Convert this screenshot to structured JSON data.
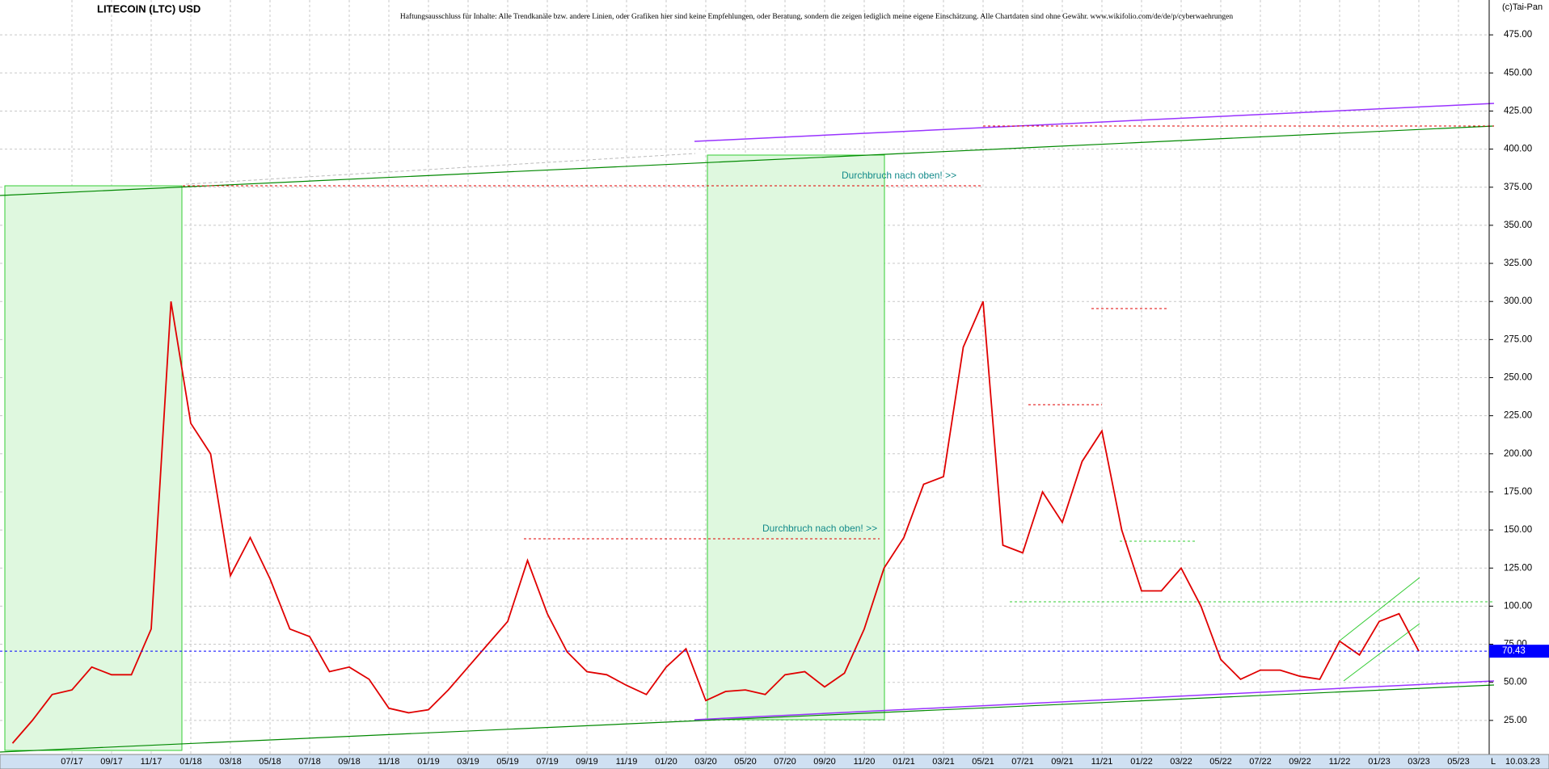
{
  "chart_data": {
    "type": "line",
    "title": "LITECOIN (LTC) USD",
    "subtitle": "Haftungsausschluss für Inhalte: Alle Trendkanäle bzw. andere Linien, oder Grafiken hier sind keine Empfehlungen, oder Beratung, sondern die zeigen lediglich meine eigene Einschätzung. Alle Chartdaten sind ohne Gewähr.  www.wikifolio.com/de/de/p/cyberwaehrungen",
    "copyright": "(c)Tai-Pan",
    "annotations": [
      "Durchbruch nach oben! >>",
      "Durchbruch nach oben! >>"
    ],
    "date_label": "10.03.23",
    "scale_label": "L",
    "x": [
      "04/17",
      "05/17",
      "06/17",
      "07/17",
      "08/17",
      "09/17",
      "10/17",
      "11/17",
      "12/17",
      "01/18",
      "02/18",
      "03/18",
      "04/18",
      "05/18",
      "06/18",
      "07/18",
      "08/18",
      "09/18",
      "10/18",
      "11/18",
      "12/18",
      "01/19",
      "02/19",
      "03/19",
      "04/19",
      "05/19",
      "06/19",
      "07/19",
      "08/19",
      "09/19",
      "10/19",
      "11/19",
      "12/19",
      "01/20",
      "02/20",
      "03/20",
      "04/20",
      "05/20",
      "06/20",
      "07/20",
      "08/20",
      "09/20",
      "10/20",
      "11/20",
      "12/20",
      "01/21",
      "02/21",
      "03/21",
      "04/21",
      "05/21",
      "06/21",
      "07/21",
      "08/21",
      "09/21",
      "10/21",
      "11/21",
      "12/21",
      "01/22",
      "02/22",
      "03/22",
      "04/22",
      "05/22",
      "06/22",
      "07/22",
      "08/22",
      "09/22",
      "10/22",
      "11/22",
      "12/22",
      "01/23",
      "02/23",
      "03/23"
    ],
    "series": [
      {
        "name": "LTC",
        "color": "#e00000",
        "values": [
          10,
          25,
          42,
          45,
          60,
          55,
          55,
          85,
          300,
          220,
          200,
          120,
          145,
          118,
          85,
          80,
          57,
          60,
          52,
          33,
          30,
          32,
          45,
          60,
          75,
          90,
          130,
          95,
          70,
          57,
          55,
          48,
          42,
          60,
          72,
          38,
          44,
          45,
          42,
          55,
          57,
          47,
          56,
          85,
          125,
          145,
          180,
          185,
          270,
          300,
          140,
          135,
          175,
          155,
          195,
          215,
          150,
          110,
          110,
          125,
          100,
          65,
          52,
          58,
          58,
          54,
          52,
          77,
          68,
          90,
          95,
          70.43
        ]
      }
    ],
    "xticks": [
      "07/17",
      "09/17",
      "11/17",
      "01/18",
      "03/18",
      "05/18",
      "07/18",
      "09/18",
      "11/18",
      "01/19",
      "03/19",
      "05/19",
      "07/19",
      "09/19",
      "11/19",
      "01/20",
      "03/20",
      "05/20",
      "07/20",
      "09/20",
      "11/20",
      "01/21",
      "03/21",
      "05/21",
      "07/21",
      "09/21",
      "11/21",
      "01/22",
      "03/22",
      "05/22",
      "07/22",
      "09/22",
      "11/22",
      "01/23",
      "03/23",
      "05/23"
    ],
    "ylim": [
      0,
      500
    ],
    "yticks": [
      {
        "value": 25,
        "label": "25.00"
      },
      {
        "value": 50,
        "label": "50.00"
      },
      {
        "value": 75,
        "label": "75.00"
      },
      {
        "value": 100,
        "label": "100.00"
      },
      {
        "value": 125,
        "label": "125.00"
      },
      {
        "value": 150,
        "label": "150.00"
      },
      {
        "value": 175,
        "label": "175.00"
      },
      {
        "value": 200,
        "label": "200.00"
      },
      {
        "value": 225,
        "label": "225.00"
      },
      {
        "value": 250,
        "label": "250.00"
      },
      {
        "value": 275,
        "label": "275.00"
      },
      {
        "value": 300,
        "label": "300.00"
      },
      {
        "value": 325,
        "label": "325.00"
      },
      {
        "value": 350,
        "label": "350.00"
      },
      {
        "value": 375,
        "label": "375.00"
      },
      {
        "value": 400,
        "label": "400.00"
      },
      {
        "value": 425,
        "label": "425.00"
      },
      {
        "value": 450,
        "label": "450.00"
      },
      {
        "value": 475,
        "label": "475.00"
      }
    ],
    "grid": true
  }
}
